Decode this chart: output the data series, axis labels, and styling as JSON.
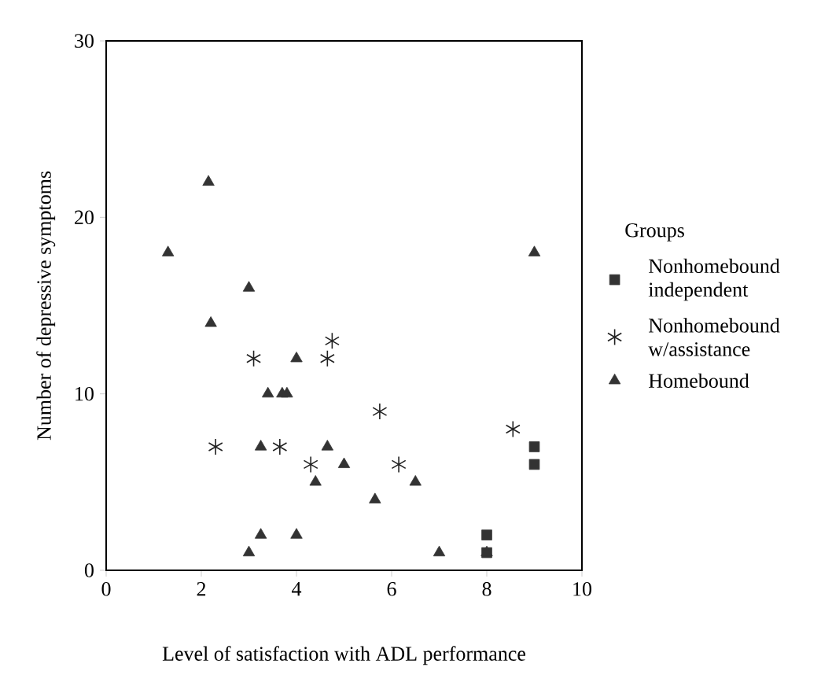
{
  "chart_data": {
    "type": "scatter",
    "xlabel": "Level of satisfaction with ADL performance",
    "ylabel": "Number of depressive symptoms",
    "legend_title": "Groups",
    "legend": "right",
    "grid": false,
    "xlim": [
      0,
      10
    ],
    "ylim": [
      0,
      30
    ],
    "xticks": [
      0,
      2,
      4,
      6,
      8,
      10
    ],
    "yticks": [
      0,
      10,
      20,
      30
    ],
    "series": [
      {
        "name": "Nonhomebound independent",
        "color": "#333333",
        "marker": "square",
        "x": [
          8,
          8,
          9,
          9
        ],
        "values": [
          2,
          1,
          7,
          6
        ]
      },
      {
        "name": "Nonhomebound w/assistance",
        "color": "#222222",
        "marker": "cross",
        "x": [
          2.3,
          3.1,
          3.65,
          4.3,
          4.65,
          4.75,
          5.75,
          6.15,
          8.55
        ],
        "values": [
          7,
          12,
          7,
          6,
          12,
          13,
          9,
          6,
          8
        ]
      },
      {
        "name": "Homebound",
        "color": "#333333",
        "marker": "triangle",
        "x": [
          1.3,
          2.15,
          2.2,
          3.0,
          3.0,
          3.25,
          3.25,
          3.4,
          3.7,
          3.8,
          4.0,
          4.0,
          4.4,
          4.65,
          5.0,
          5.65,
          6.5,
          7.0,
          8.0,
          9.0
        ],
        "values": [
          18,
          22,
          14,
          16,
          1,
          7,
          2,
          10,
          10,
          10,
          12,
          2,
          5,
          7,
          6,
          4,
          5,
          1,
          1,
          18
        ]
      }
    ]
  }
}
